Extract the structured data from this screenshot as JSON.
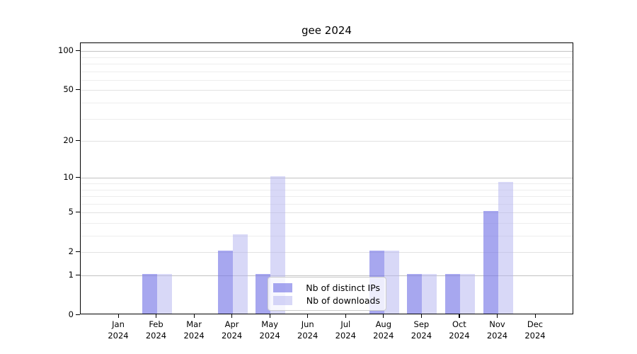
{
  "chart_data": {
    "type": "bar",
    "title": "gee 2024",
    "year_label": "2024",
    "categories": [
      "Jan",
      "Feb",
      "Mar",
      "Apr",
      "May",
      "Jun",
      "Jul",
      "Aug",
      "Sep",
      "Oct",
      "Nov",
      "Dec"
    ],
    "series": [
      {
        "name": "Nb of distinct IPs",
        "color": "rgba(120,120,230,0.65)",
        "values": [
          0,
          1,
          0,
          2,
          1,
          0,
          0,
          2,
          1,
          1,
          5,
          0
        ]
      },
      {
        "name": "Nb of downloads",
        "color": "rgba(180,180,240,0.52)",
        "values": [
          0,
          1,
          0,
          3,
          10,
          0,
          0,
          2,
          1,
          1,
          9,
          0
        ]
      }
    ],
    "yscale": "log1p",
    "ylim": [
      0,
      121
    ],
    "y_ticks": [
      0,
      1,
      2,
      5,
      10,
      20,
      50,
      100
    ],
    "y_strong_gridlines": [
      1,
      10,
      100
    ],
    "y_mid_gridlines": [
      2,
      5,
      20,
      50
    ],
    "y_minor_gridlines": [
      3,
      4,
      6,
      7,
      8,
      9,
      30,
      40,
      60,
      70,
      80,
      90
    ],
    "grid": true,
    "legend_position": "lower center"
  },
  "colors": {
    "background": "#ffffff",
    "axis": "#000000",
    "text": "#000000",
    "grid_strong": "#c2c2c2",
    "grid_mid": "#e2e2e2",
    "grid_minor": "#ededed",
    "legend_background": "rgba(255,255,255,0.8)",
    "legend_border": "#cccccc"
  }
}
